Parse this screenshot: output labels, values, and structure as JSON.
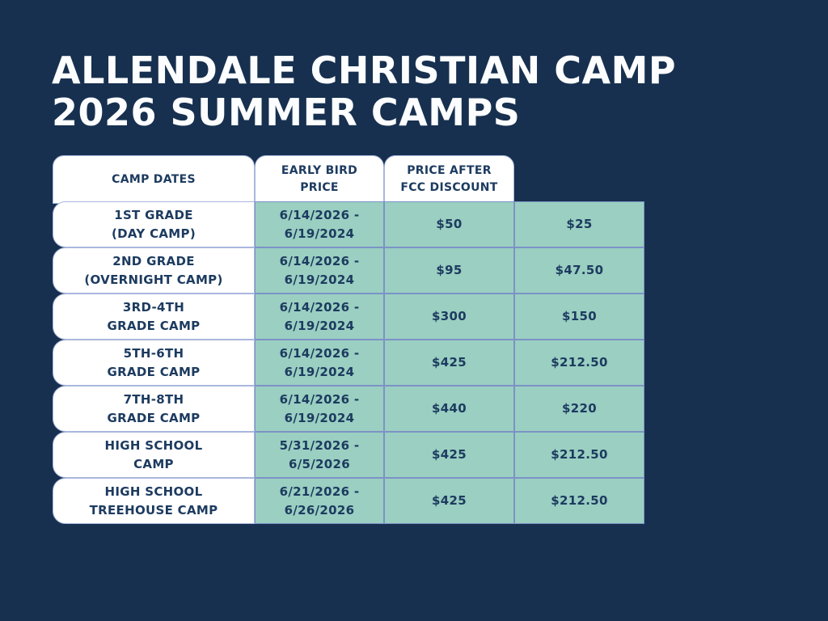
{
  "page": {
    "background_color": "#17304F",
    "title": "ALLENDALE CHRISTIAN CAMP\n2026 SUMMER CAMPS"
  },
  "colors": {
    "table_teal": "#9ACFC1",
    "grid_line": "#7D92C6",
    "text_navy": "#1D3B60",
    "title_white": "#FCFDFE"
  },
  "table": {
    "columns": [
      "CAMP DATES",
      "EARLY BIRD\nPRICE",
      "PRICE AFTER\nFCC DISCOUNT"
    ],
    "rows": [
      {
        "label": "1ST GRADE\n(DAY CAMP)",
        "dates": "6/14/2026 -\n6/19/2024",
        "early_bird": "$50",
        "fcc_discount": "$25"
      },
      {
        "label": "2ND GRADE\n(OVERNIGHT CAMP)",
        "dates": "6/14/2026 -\n6/19/2024",
        "early_bird": "$95",
        "fcc_discount": "$47.50"
      },
      {
        "label": "3RD-4TH\nGRADE CAMP",
        "dates": "6/14/2026 -\n6/19/2024",
        "early_bird": "$300",
        "fcc_discount": "$150"
      },
      {
        "label": "5TH-6TH\nGRADE CAMP",
        "dates": "6/14/2026 -\n6/19/2024",
        "early_bird": "$425",
        "fcc_discount": "$212.50"
      },
      {
        "label": "7TH-8TH\nGRADE CAMP",
        "dates": "6/14/2026 -\n6/19/2024",
        "early_bird": "$440",
        "fcc_discount": "$220"
      },
      {
        "label": "HIGH SCHOOL\nCAMP",
        "dates": "5/31/2026 -\n6/5/2026",
        "early_bird": "$425",
        "fcc_discount": "$212.50"
      },
      {
        "label": "HIGH SCHOOL\nTREEHOUSE CAMP",
        "dates": "6/21/2026 -\n6/26/2026",
        "early_bird": "$425",
        "fcc_discount": "$212.50"
      }
    ]
  }
}
